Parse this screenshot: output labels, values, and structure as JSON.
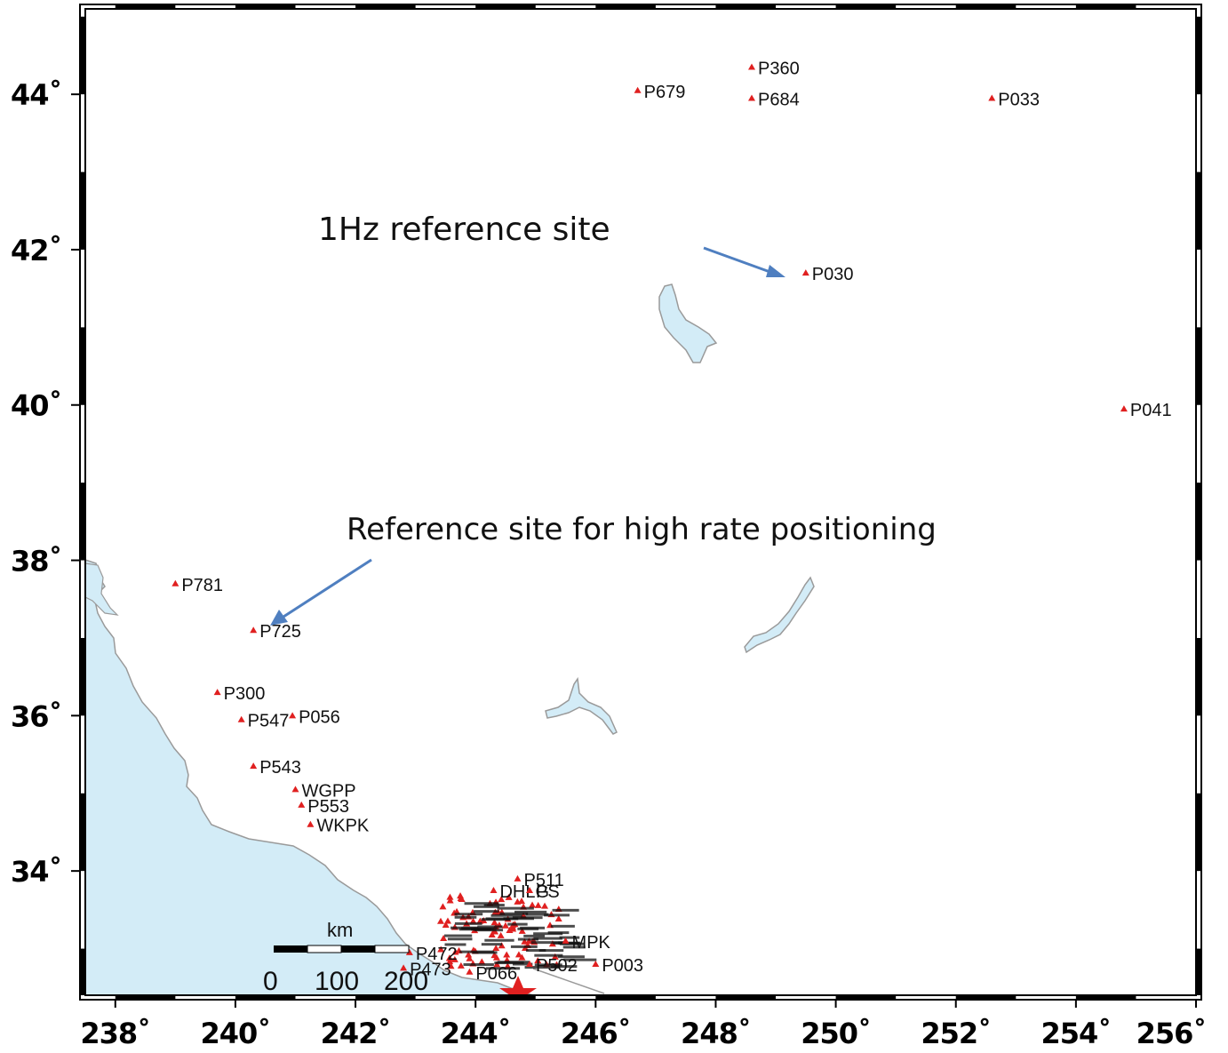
{
  "map": {
    "lon_range": [
      237.5,
      256
    ],
    "lat_range": [
      32.4,
      45.1
    ],
    "x_ticks": [
      {
        "value": 238,
        "label": "238˚"
      },
      {
        "value": 240,
        "label": "240˚"
      },
      {
        "value": 242,
        "label": "242˚"
      },
      {
        "value": 244,
        "label": "244˚"
      },
      {
        "value": 246,
        "label": "246˚"
      },
      {
        "value": 248,
        "label": "248˚"
      },
      {
        "value": 250,
        "label": "250˚"
      },
      {
        "value": 252,
        "label": "252˚"
      },
      {
        "value": 254,
        "label": "254˚"
      },
      {
        "value": 256,
        "label": "256˚"
      }
    ],
    "y_ticks": [
      {
        "value": 34,
        "label": "34˚"
      },
      {
        "value": 36,
        "label": "36˚"
      },
      {
        "value": 38,
        "label": "38˚"
      },
      {
        "value": 40,
        "label": "40˚"
      },
      {
        "value": 42,
        "label": "42˚"
      },
      {
        "value": 44,
        "label": "44˚"
      }
    ],
    "colors": {
      "water": "#d3ecf7",
      "coast": "#9a9a9a",
      "station": "#e02020",
      "arrow": "#4f7fc0",
      "frame": "#000000"
    },
    "stations": [
      {
        "name": "P360",
        "lon": 248.6,
        "lat": 44.35
      },
      {
        "name": "P679",
        "lon": 246.7,
        "lat": 44.05
      },
      {
        "name": "P684",
        "lon": 248.6,
        "lat": 43.95
      },
      {
        "name": "P033",
        "lon": 252.6,
        "lat": 43.95
      },
      {
        "name": "P030",
        "lon": 249.5,
        "lat": 41.7
      },
      {
        "name": "P041",
        "lon": 254.8,
        "lat": 39.95
      },
      {
        "name": "P781",
        "lon": 239.0,
        "lat": 37.7
      },
      {
        "name": "P725",
        "lon": 240.3,
        "lat": 37.1
      },
      {
        "name": "P300",
        "lon": 239.7,
        "lat": 36.3
      },
      {
        "name": "P547",
        "lon": 240.1,
        "lat": 35.95
      },
      {
        "name": "P056",
        "lon": 240.95,
        "lat": 36.0
      },
      {
        "name": "P543",
        "lon": 240.3,
        "lat": 35.35
      },
      {
        "name": "WGPP",
        "lon": 241.0,
        "lat": 35.05
      },
      {
        "name": "P553",
        "lon": 241.1,
        "lat": 34.85
      },
      {
        "name": "WKPK",
        "lon": 241.25,
        "lat": 34.6
      },
      {
        "name": "P511",
        "lon": 244.7,
        "lat": 33.9
      },
      {
        "name": "DHLG",
        "lon": 244.3,
        "lat": 33.75
      },
      {
        "name": "PS",
        "lon": 244.9,
        "lat": 33.75
      },
      {
        "name": "MPK",
        "lon": 245.5,
        "lat": 33.1
      },
      {
        "name": "P003",
        "lon": 246.0,
        "lat": 32.8
      },
      {
        "name": "P472",
        "lon": 242.9,
        "lat": 32.95
      },
      {
        "name": "P473",
        "lon": 242.8,
        "lat": 32.75
      },
      {
        "name": "P066",
        "lon": 243.9,
        "lat": 32.7
      },
      {
        "name": "P502",
        "lon": 244.9,
        "lat": 32.8
      }
    ],
    "annotations": [
      {
        "text": "1Hz reference site"
      },
      {
        "text": "Reference site for high rate positioning"
      }
    ],
    "scale_bar": {
      "unit": "km",
      "labels": [
        "0",
        "100",
        "200"
      ]
    }
  }
}
